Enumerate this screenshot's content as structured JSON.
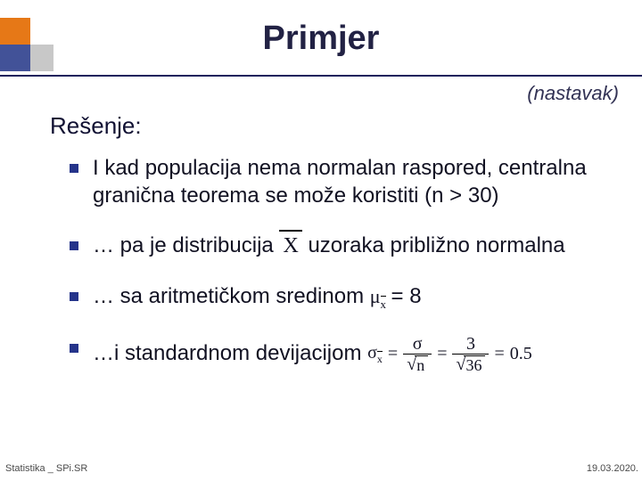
{
  "title": "Primjer",
  "subtitle": "(nastavak)",
  "section_label": "Rešenje:",
  "bullets": {
    "b1": "I kad populacija nema normalan raspored, centralna granična teorema se može koristiti (n > 30)",
    "b2_pre": "… pa je distribucija ",
    "b2_x": "X",
    "b2_post": " uzoraka približno normalna",
    "b3_pre": "… sa aritmetičkom sredinom ",
    "b3_mu": "μ",
    "b3_sub": "x",
    "b3_eq": " =  8",
    "b4_pre": "…i standardnom devijacijom ",
    "eq4": {
      "sigma": "σ",
      "sub": "x",
      "eq": "=",
      "num1": "σ",
      "den1": "n",
      "num2": "3",
      "den2": "36",
      "result": "0.5"
    }
  },
  "footer": {
    "left": "Statistika _ SPi.SR",
    "right": "19.03.2020."
  },
  "colors": {
    "orange": "#e67817",
    "gray": "#c8c8c8",
    "blue": "#2a3d8f",
    "line": "#1a1f5c",
    "bullet_square": "#25348a"
  }
}
